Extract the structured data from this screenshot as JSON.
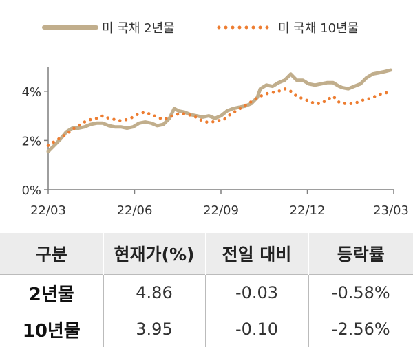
{
  "chart_data": {
    "type": "line",
    "y_unit": "%",
    "ylim": [
      0,
      5
    ],
    "y_ticks": [
      {
        "value": 0,
        "label": "0%"
      },
      {
        "value": 2,
        "label": "2%"
      },
      {
        "value": 4,
        "label": "4%"
      }
    ],
    "x_ticks": [
      "22/03",
      "22/06",
      "22/09",
      "22/12",
      "23/03"
    ],
    "legend_position": "top",
    "grid": false,
    "series": [
      {
        "name": "미 국채 2년물",
        "style": "solid",
        "color": "#c1ae8c",
        "points": [
          [
            0,
            1.55
          ],
          [
            0.1,
            1.8
          ],
          [
            0.2,
            2.05
          ],
          [
            0.3,
            2.35
          ],
          [
            0.4,
            2.5
          ],
          [
            0.5,
            2.5
          ],
          [
            0.6,
            2.55
          ],
          [
            0.7,
            2.65
          ],
          [
            0.8,
            2.7
          ],
          [
            0.9,
            2.7
          ],
          [
            1.0,
            2.6
          ],
          [
            1.1,
            2.55
          ],
          [
            1.2,
            2.55
          ],
          [
            1.3,
            2.5
          ],
          [
            1.4,
            2.55
          ],
          [
            1.5,
            2.7
          ],
          [
            1.6,
            2.75
          ],
          [
            1.7,
            2.7
          ],
          [
            1.8,
            2.6
          ],
          [
            1.9,
            2.65
          ],
          [
            2.0,
            2.9
          ],
          [
            2.08,
            3.3
          ],
          [
            2.15,
            3.2
          ],
          [
            2.25,
            3.15
          ],
          [
            2.35,
            3.05
          ],
          [
            2.45,
            3.0
          ],
          [
            2.55,
            2.95
          ],
          [
            2.65,
            3.0
          ],
          [
            2.75,
            2.9
          ],
          [
            2.85,
            3.0
          ],
          [
            2.95,
            3.2
          ],
          [
            3.05,
            3.3
          ],
          [
            3.15,
            3.35
          ],
          [
            3.25,
            3.4
          ],
          [
            3.35,
            3.5
          ],
          [
            3.45,
            3.75
          ],
          [
            3.5,
            4.1
          ],
          [
            3.6,
            4.25
          ],
          [
            3.7,
            4.2
          ],
          [
            3.8,
            4.35
          ],
          [
            3.9,
            4.45
          ],
          [
            4.0,
            4.7
          ],
          [
            4.1,
            4.45
          ],
          [
            4.2,
            4.45
          ],
          [
            4.3,
            4.3
          ],
          [
            4.4,
            4.25
          ],
          [
            4.5,
            4.3
          ],
          [
            4.6,
            4.35
          ],
          [
            4.7,
            4.35
          ],
          [
            4.8,
            4.2
          ],
          [
            4.85,
            4.15
          ],
          [
            4.95,
            4.1
          ],
          [
            5.05,
            4.2
          ],
          [
            5.15,
            4.3
          ],
          [
            5.25,
            4.55
          ],
          [
            5.35,
            4.7
          ],
          [
            5.45,
            4.75
          ],
          [
            5.55,
            4.8
          ],
          [
            5.65,
            4.86
          ]
        ]
      },
      {
        "name": "미 국채 10년물",
        "style": "dotted",
        "color": "#ed7d31",
        "points": [
          [
            0,
            1.8
          ],
          [
            0.1,
            1.95
          ],
          [
            0.2,
            2.1
          ],
          [
            0.3,
            2.25
          ],
          [
            0.4,
            2.45
          ],
          [
            0.5,
            2.6
          ],
          [
            0.6,
            2.75
          ],
          [
            0.7,
            2.85
          ],
          [
            0.8,
            2.9
          ],
          [
            0.9,
            3.0
          ],
          [
            1.0,
            2.9
          ],
          [
            1.1,
            2.85
          ],
          [
            1.2,
            2.8
          ],
          [
            1.3,
            2.85
          ],
          [
            1.4,
            2.95
          ],
          [
            1.5,
            3.1
          ],
          [
            1.6,
            3.15
          ],
          [
            1.7,
            3.05
          ],
          [
            1.8,
            2.95
          ],
          [
            1.9,
            2.85
          ],
          [
            2.0,
            2.95
          ],
          [
            2.1,
            3.05
          ],
          [
            2.2,
            3.1
          ],
          [
            2.3,
            3.05
          ],
          [
            2.4,
            3.0
          ],
          [
            2.5,
            2.85
          ],
          [
            2.6,
            2.75
          ],
          [
            2.7,
            2.75
          ],
          [
            2.8,
            2.8
          ],
          [
            2.9,
            2.85
          ],
          [
            3.0,
            3.05
          ],
          [
            3.1,
            3.2
          ],
          [
            3.2,
            3.35
          ],
          [
            3.3,
            3.5
          ],
          [
            3.4,
            3.65
          ],
          [
            3.5,
            3.8
          ],
          [
            3.6,
            3.9
          ],
          [
            3.7,
            3.95
          ],
          [
            3.8,
            4.0
          ],
          [
            3.9,
            4.1
          ],
          [
            4.0,
            4.0
          ],
          [
            4.1,
            3.8
          ],
          [
            4.2,
            3.7
          ],
          [
            4.3,
            3.6
          ],
          [
            4.4,
            3.5
          ],
          [
            4.5,
            3.5
          ],
          [
            4.6,
            3.65
          ],
          [
            4.7,
            3.8
          ],
          [
            4.8,
            3.55
          ],
          [
            4.9,
            3.5
          ],
          [
            5.0,
            3.5
          ],
          [
            5.1,
            3.55
          ],
          [
            5.2,
            3.65
          ],
          [
            5.3,
            3.7
          ],
          [
            5.4,
            3.8
          ],
          [
            5.5,
            3.9
          ],
          [
            5.6,
            3.95
          ]
        ]
      }
    ]
  },
  "table": {
    "headers": [
      "구분",
      "현재가(%)",
      "전일 대비",
      "등락률"
    ],
    "rows": [
      {
        "label": "2년물",
        "price": "4.86",
        "change": "-0.03",
        "rate": "-0.58%"
      },
      {
        "label": "10년물",
        "price": "3.95",
        "change": "-0.10",
        "rate": "-2.56%"
      }
    ]
  }
}
